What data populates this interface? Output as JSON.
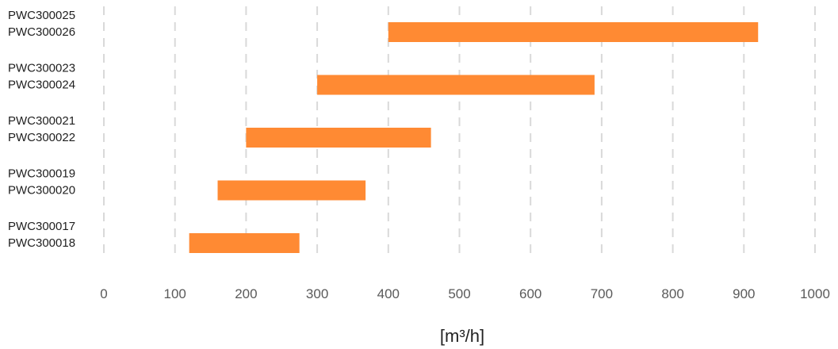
{
  "chart_data": {
    "type": "bar",
    "orientation": "horizontal",
    "bar_style": "floating-range",
    "categories": [
      [
        "PWC300025",
        "PWC300026"
      ],
      [
        "PWC300023",
        "PWC300024"
      ],
      [
        "PWC300021",
        "PWC300022"
      ],
      [
        "PWC300019",
        "PWC300020"
      ],
      [
        "PWC300017",
        "PWC300018"
      ]
    ],
    "ranges": [
      [
        400,
        920
      ],
      [
        300,
        690
      ],
      [
        200,
        460
      ],
      [
        160,
        368
      ],
      [
        120,
        275
      ]
    ],
    "xlabel": "[m³/h]",
    "xlim": [
      0,
      1000
    ],
    "xticks": [
      "0",
      "100",
      "200",
      "300",
      "400",
      "500",
      "600",
      "700",
      "800",
      "900",
      "1000"
    ],
    "grid": "vertical-dashed",
    "legend": "none",
    "colors": {
      "bar": "#FF8A33",
      "grid": "#d9d9d9",
      "tick_text": "#5a5a5a",
      "category_text": "#1f1f1f"
    }
  }
}
